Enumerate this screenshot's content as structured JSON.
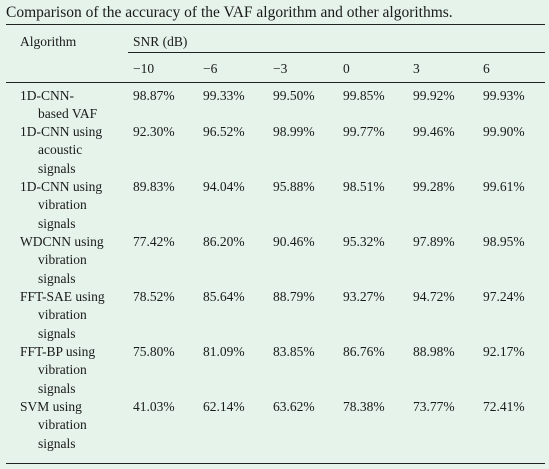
{
  "caption": "Comparison of the accuracy of the VAF algorithm and other algorithms.",
  "header": {
    "algorithm": "Algorithm",
    "snr_group": "SNR (dB)",
    "snr_values": [
      "−10",
      "−6",
      "−3",
      "0",
      "3",
      "6"
    ]
  },
  "rows": [
    {
      "name_lines": [
        "1D-CNN-",
        "based VAF"
      ],
      "values": [
        "98.87%",
        "99.33%",
        "99.50%",
        "99.85%",
        "99.92%",
        "99.93%"
      ]
    },
    {
      "name_lines": [
        "1D-CNN using",
        "acoustic",
        "signals"
      ],
      "values": [
        "92.30%",
        "96.52%",
        "98.99%",
        "99.77%",
        "99.46%",
        "99.90%"
      ]
    },
    {
      "name_lines": [
        "1D-CNN using",
        "vibration",
        "signals"
      ],
      "values": [
        "89.83%",
        "94.04%",
        "95.88%",
        "98.51%",
        "99.28%",
        "99.61%"
      ]
    },
    {
      "name_lines": [
        "WDCNN using",
        "vibration",
        "signals"
      ],
      "values": [
        "77.42%",
        "86.20%",
        "90.46%",
        "95.32%",
        "97.89%",
        "98.95%"
      ]
    },
    {
      "name_lines": [
        "FFT-SAE using",
        "vibration",
        "signals"
      ],
      "values": [
        "78.52%",
        "85.64%",
        "88.79%",
        "93.27%",
        "94.72%",
        "97.24%"
      ]
    },
    {
      "name_lines": [
        "FFT-BP using",
        "vibration",
        "signals"
      ],
      "values": [
        "75.80%",
        "81.09%",
        "83.85%",
        "86.76%",
        "88.98%",
        "92.17%"
      ]
    },
    {
      "name_lines": [
        "SVM using",
        "vibration",
        "signals"
      ],
      "values": [
        "41.03%",
        "62.14%",
        "63.62%",
        "78.38%",
        "73.77%",
        "72.41%"
      ]
    }
  ]
}
